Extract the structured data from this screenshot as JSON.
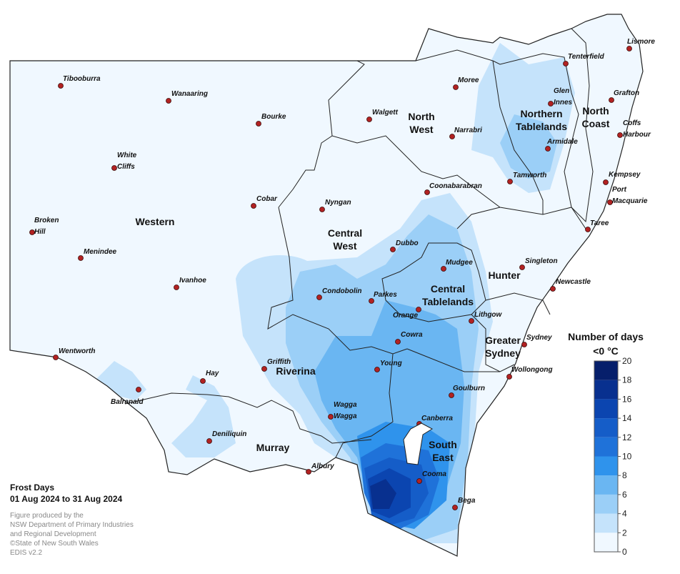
{
  "map": {
    "title": "Frost Days",
    "period": "01 Aug 2024 to 31 Aug 2024",
    "credits": [
      "Figure produced by the",
      "NSW Department of Primary Industries",
      "and Regional Development",
      "©State of New South Wales",
      "EDIS v2.2"
    ],
    "legend": {
      "title": [
        "Number of days",
        "<0 °C"
      ],
      "ticks": [
        0,
        2,
        4,
        6,
        8,
        10,
        12,
        14,
        16,
        18,
        20
      ],
      "colors": [
        "#f0f8ff",
        "#c5e3fb",
        "#9bcff7",
        "#6ab6f2",
        "#2f93ec",
        "#1f72d9",
        "#155dc8",
        "#0b45b0",
        "#08308f",
        "#061f6b"
      ]
    },
    "regions": [
      {
        "lines": [
          "Western"
        ]
      },
      {
        "lines": [
          "North",
          "West"
        ]
      },
      {
        "lines": [
          "Northern",
          "Tablelands"
        ]
      },
      {
        "lines": [
          "North",
          "Coast"
        ]
      },
      {
        "lines": [
          "Central",
          "West"
        ]
      },
      {
        "lines": [
          "Hunter"
        ]
      },
      {
        "lines": [
          "Central",
          "Tablelands"
        ]
      },
      {
        "lines": [
          "Greater",
          "Sydney"
        ]
      },
      {
        "lines": [
          "Riverina"
        ]
      },
      {
        "lines": [
          "Murray"
        ]
      },
      {
        "lines": [
          "South",
          "East"
        ]
      }
    ],
    "towns": [
      {
        "lines": [
          "Tibooburra"
        ]
      },
      {
        "lines": [
          "Wanaaring"
        ]
      },
      {
        "lines": [
          "Bourke"
        ]
      },
      {
        "lines": [
          "White",
          "Cliffs"
        ]
      },
      {
        "lines": [
          "Cobar"
        ]
      },
      {
        "lines": [
          "Broken",
          "Hill"
        ]
      },
      {
        "lines": [
          "Menindee"
        ]
      },
      {
        "lines": [
          "Ivanhoe"
        ]
      },
      {
        "lines": [
          "Wentworth"
        ]
      },
      {
        "lines": [
          "Balranald"
        ]
      },
      {
        "lines": [
          "Hay"
        ]
      },
      {
        "lines": [
          "Griffith"
        ]
      },
      {
        "lines": [
          "Deniliquin"
        ]
      },
      {
        "lines": [
          "Albury"
        ]
      },
      {
        "lines": [
          "Wagga",
          "Wagga"
        ]
      },
      {
        "lines": [
          "Young"
        ]
      },
      {
        "lines": [
          "Cowra"
        ]
      },
      {
        "lines": [
          "Condobolin"
        ]
      },
      {
        "lines": [
          "Parkes"
        ]
      },
      {
        "lines": [
          "Orange"
        ]
      },
      {
        "lines": [
          "Lithgow"
        ]
      },
      {
        "lines": [
          "Mudgee"
        ]
      },
      {
        "lines": [
          "Dubbo"
        ]
      },
      {
        "lines": [
          "Nyngan"
        ]
      },
      {
        "lines": [
          "Walgett"
        ]
      },
      {
        "lines": [
          "Moree"
        ]
      },
      {
        "lines": [
          "Narrabri"
        ]
      },
      {
        "lines": [
          "Coonabarabran"
        ]
      },
      {
        "lines": [
          "Tamworth"
        ]
      },
      {
        "lines": [
          "Armidale"
        ]
      },
      {
        "lines": [
          "Glen",
          "Innes"
        ]
      },
      {
        "lines": [
          "Tenterfield"
        ]
      },
      {
        "lines": [
          "Lismore"
        ]
      },
      {
        "lines": [
          "Grafton"
        ]
      },
      {
        "lines": [
          "Coffs",
          "Harbour"
        ]
      },
      {
        "lines": [
          "Kempsey"
        ]
      },
      {
        "lines": [
          "Port",
          "Macquarie"
        ]
      },
      {
        "lines": [
          "Taree"
        ]
      },
      {
        "lines": [
          "Singleton"
        ]
      },
      {
        "lines": [
          "Newcastle"
        ]
      },
      {
        "lines": [
          "Sydney"
        ]
      },
      {
        "lines": [
          "Wollongong"
        ]
      },
      {
        "lines": [
          "Goulburn"
        ]
      },
      {
        "lines": [
          "Canberra"
        ]
      },
      {
        "lines": [
          "Cooma"
        ]
      },
      {
        "lines": [
          "Bega"
        ]
      }
    ]
  }
}
